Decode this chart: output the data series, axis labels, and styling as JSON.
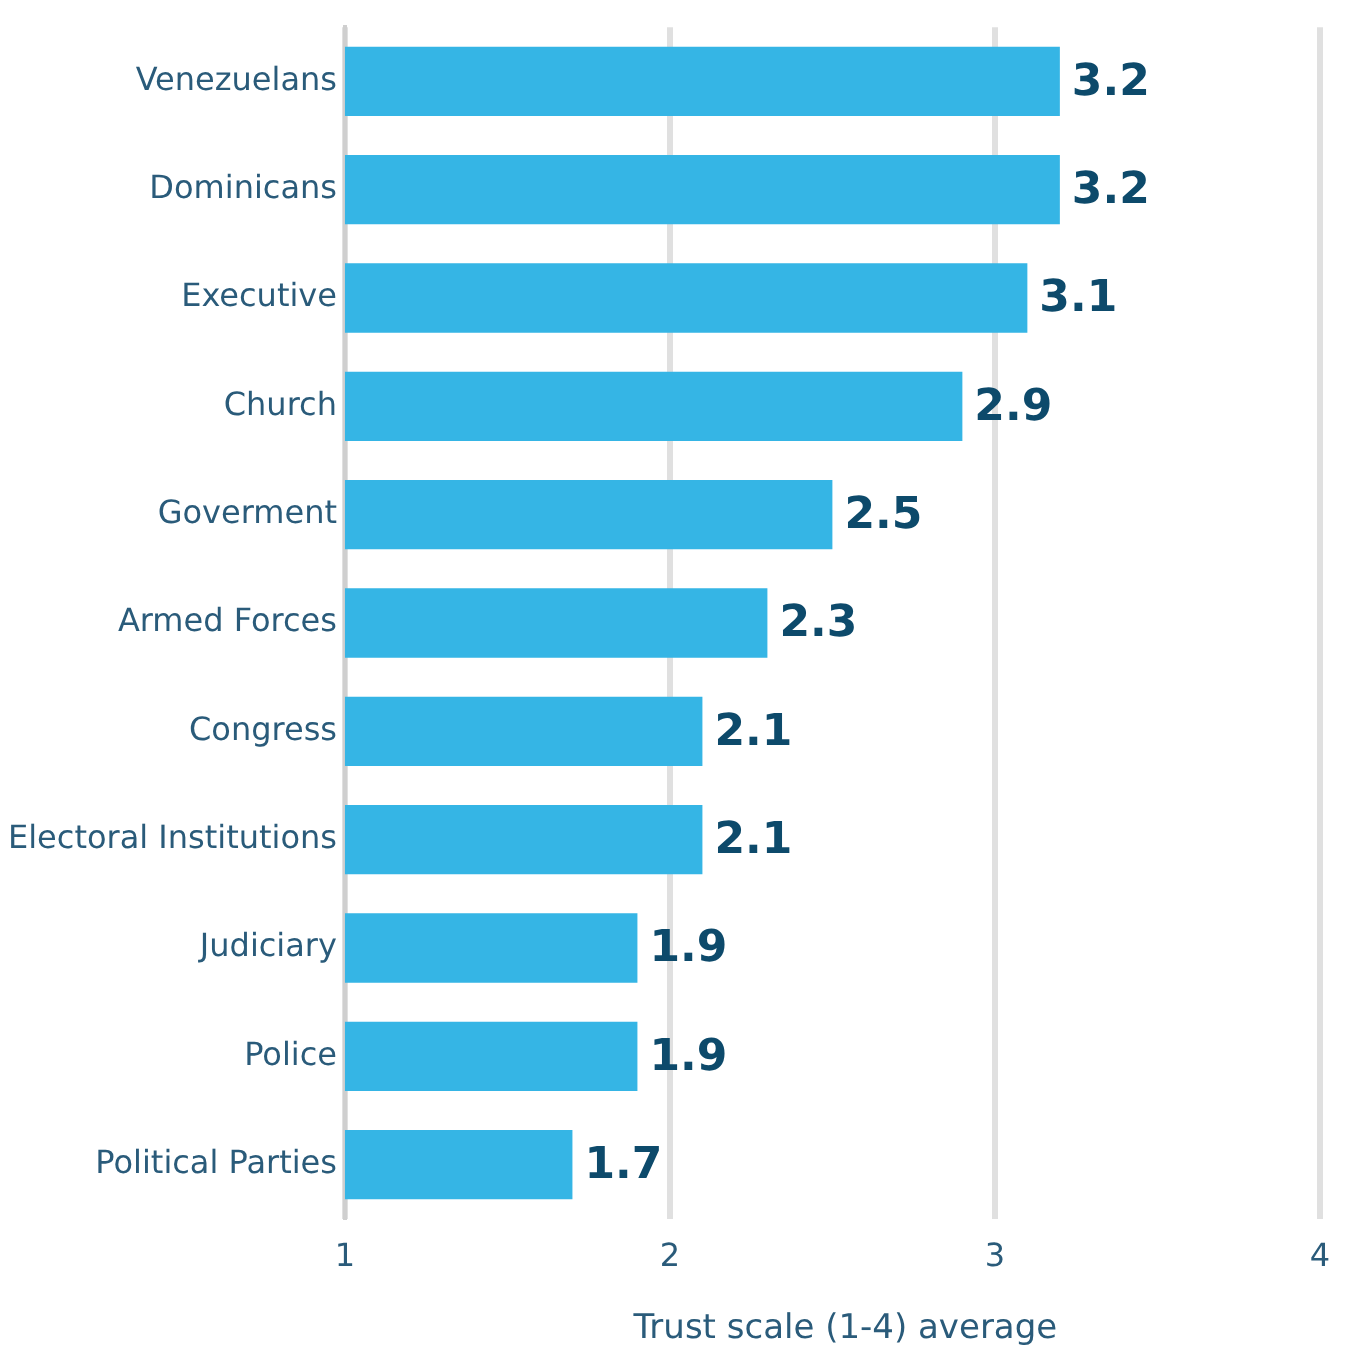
{
  "chart_data": {
    "type": "bar",
    "orientation": "horizontal",
    "xlabel": "Trust scale (1-4) average",
    "categories": [
      "Venezuelans",
      "Dominicans",
      "Executive",
      "Church",
      "Goverment",
      "Armed Forces",
      "Congress",
      "Electoral Institutions",
      "Judiciary",
      "Police",
      "Political Parties"
    ],
    "values": [
      3.2,
      3.2,
      3.1,
      2.9,
      2.5,
      2.3,
      2.1,
      2.1,
      1.9,
      1.9,
      1.7
    ],
    "color": "#35b5e5",
    "xlim": [
      1,
      4.08
    ],
    "xticks": [
      1,
      2,
      3,
      4
    ],
    "grid": "x",
    "data_labels": true,
    "legend": false
  }
}
